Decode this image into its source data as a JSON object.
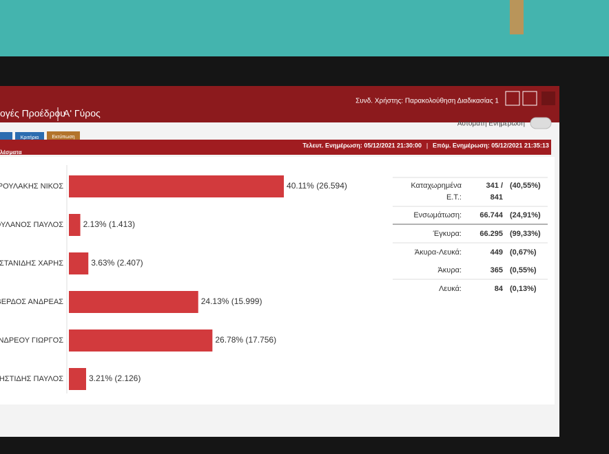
{
  "header": {
    "title": "ογές Προέδρου",
    "round": "Α' Γύρος",
    "user": "Συνδ. Χρήστης: Παρακολούθηση Διαδικασίας 1"
  },
  "toolbar": {
    "buttons": [
      "Κριτήρια",
      "Εκτύπωση"
    ],
    "auto_update": "Αυτόματη Ενημέρωση"
  },
  "status": {
    "section": "λέσματα",
    "last_update": "Τελευτ. Ενημέρωση: 05/12/2021 21:30:00",
    "next_update": "Επόμ. Ενημέρωση: 05/12/2021 21:35:13"
  },
  "chart_data": {
    "type": "bar",
    "orientation": "horizontal",
    "color": "#d23a3d",
    "categories": [
      "ΝΔΡΟΥΛΑΚΗΣ ΝΙΚΟΣ",
      "ΕΡΟΥΛΑΝΟΣ ΠΑΥΛΟΣ",
      "ΚΑΣΤΑΝΙΔΗΣ ΧΑΡΗΣ",
      "ΟΒΕΡΔΟΣ ΑΝΔΡΕΑΣ",
      "ΝΔΡΕΟΥ ΓΙΩΡΓΟΣ",
      "ΡΗΣΤΙΔΗΣ ΠΑΥΛΟΣ"
    ],
    "values": [
      40.11,
      2.13,
      3.63,
      24.13,
      26.78,
      3.21
    ],
    "value_labels": [
      "40.11% (26.594)",
      "2.13% (1.413)",
      "3.63% (2.407)",
      "24.13% (15.999)",
      "26.78% (17.756)",
      "3.21% (2.126)"
    ]
  },
  "stats": {
    "rows": [
      {
        "label": "Καταχωρημένα",
        "value": "341 /",
        "percent": "(40,55%)"
      },
      {
        "label": "Ε.Τ.:",
        "value": "841"
      },
      {
        "label": "Ενσωμάτωση:",
        "value": "66.744",
        "percent": "(24,91%)"
      },
      {
        "label": "Έγκυρα:",
        "value": "66.295",
        "percent": "(99,33%)"
      },
      {
        "label": "Άκυρα-Λευκά:",
        "value": "449",
        "percent": "(0,67%)"
      },
      {
        "label": "Άκυρα:",
        "value": "365",
        "percent": "(0,55%)"
      },
      {
        "label": "Λευκά:",
        "value": "84",
        "percent": "(0,13%)"
      }
    ]
  }
}
